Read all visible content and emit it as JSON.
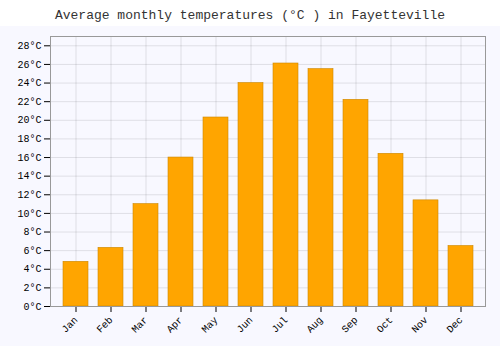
{
  "chart_data": {
    "type": "bar",
    "title": "Average monthly temperatures (°C ) in Fayetteville",
    "categories": [
      "Jan",
      "Feb",
      "Mar",
      "Apr",
      "May",
      "Jun",
      "Jul",
      "Aug",
      "Sep",
      "Oct",
      "Nov",
      "Dec"
    ],
    "values": [
      4.8,
      6.3,
      11.0,
      16.0,
      20.3,
      24.0,
      26.1,
      25.5,
      22.2,
      16.4,
      11.4,
      6.5
    ],
    "color": "#FFA500",
    "ylim": [
      0,
      29
    ],
    "yticks": [
      {
        "value": 0,
        "label": "0°C"
      },
      {
        "value": 2,
        "label": "2°C"
      },
      {
        "value": 4,
        "label": "4°C"
      },
      {
        "value": 6,
        "label": "6°C"
      },
      {
        "value": 8,
        "label": "8°C"
      },
      {
        "value": 10,
        "label": "10°C"
      },
      {
        "value": 12,
        "label": "12°C"
      },
      {
        "value": 14,
        "label": "14°C"
      },
      {
        "value": 16,
        "label": "16°C"
      },
      {
        "value": 18,
        "label": "18°C"
      },
      {
        "value": 20,
        "label": "20°C"
      },
      {
        "value": 22,
        "label": "22°C"
      },
      {
        "value": 24,
        "label": "24°C"
      },
      {
        "value": 26,
        "label": "26°C"
      },
      {
        "value": 28,
        "label": "28°C"
      }
    ],
    "grid": true
  }
}
